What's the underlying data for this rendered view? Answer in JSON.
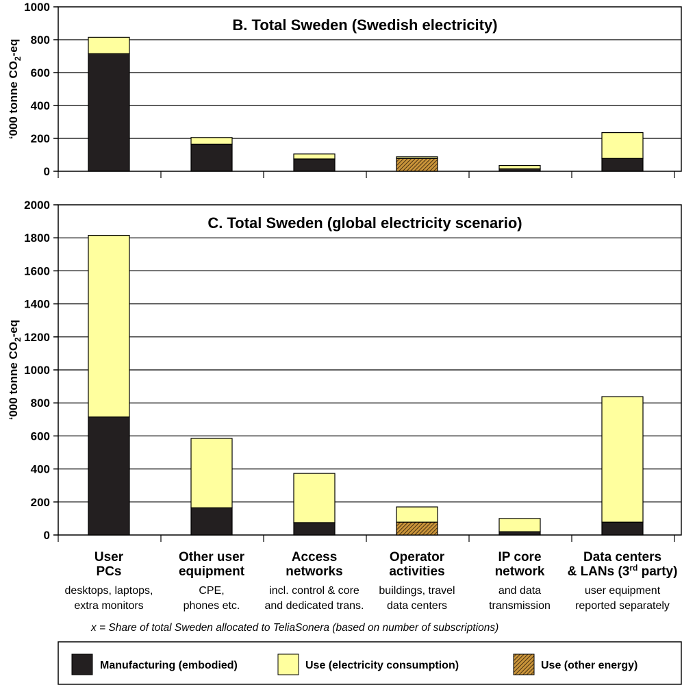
{
  "colors": {
    "manufacturing": "#231f20",
    "use_electricity": "#ffff9e",
    "use_other_fill": "#c9943a",
    "use_other_hatch": "#4a3212",
    "grid": "#000000"
  },
  "categories": [
    {
      "label1": "User",
      "label2": "PCs",
      "sub1": "desktops, laptops,",
      "sub2": "extra monitors"
    },
    {
      "label1": "Other user",
      "label2": "equipment",
      "sub1": "CPE,",
      "sub2": "phones etc."
    },
    {
      "label1": "Access",
      "label2": "networks",
      "sub1": "incl. control & core",
      "sub2": "and dedicated trans."
    },
    {
      "label1": "Operator",
      "label2": "activities",
      "sub1": "buildings, travel",
      "sub2": "data centers"
    },
    {
      "label1": "IP core",
      "label2": "network",
      "sub1": "and data",
      "sub2": "transmission"
    },
    {
      "label1": "Data centers",
      "label2": "& LANs (3",
      "label2_sup": "rd",
      "label2_tail": " party)",
      "sub1": "user equipment",
      "sub2": "reported separately"
    }
  ],
  "footnote": "x = Share of total Sweden allocated to TeliaSonera (based on number of subscriptions)",
  "legend": [
    {
      "key": "manufacturing",
      "label": "Manufacturing (embodied)"
    },
    {
      "key": "use_electricity",
      "label": "Use (electricity consumption)"
    },
    {
      "key": "use_other",
      "label": "Use (other energy)"
    }
  ],
  "chart_data": [
    {
      "type": "bar",
      "stacked": true,
      "title": "B. Total Sweden (Swedish electricity)",
      "ylabel": "‘000 tonne CO",
      "ylabel_sub": "2",
      "ylabel_tail": "-eq",
      "ylim": [
        0,
        1000
      ],
      "yticks": [
        0,
        200,
        400,
        600,
        800,
        1000
      ],
      "grid": true,
      "series": [
        {
          "key": "manufacturing",
          "name": "Manufacturing (embodied)",
          "values": [
            715,
            165,
            75,
            0,
            15,
            78
          ]
        },
        {
          "key": "use_other",
          "name": "Use (other energy)",
          "values": [
            0,
            0,
            0,
            78,
            0,
            0
          ]
        },
        {
          "key": "use_electricity",
          "name": "Use (electricity consumption)",
          "values": [
            100,
            40,
            30,
            10,
            20,
            157
          ]
        }
      ]
    },
    {
      "type": "bar",
      "stacked": true,
      "title": "C. Total Sweden (global electricity scenario)",
      "ylabel": "‘000 tonne CO",
      "ylabel_sub": "2",
      "ylabel_tail": "-eq",
      "ylim": [
        0,
        2000
      ],
      "yticks": [
        0,
        200,
        400,
        600,
        800,
        1000,
        1200,
        1400,
        1600,
        1800,
        2000
      ],
      "grid": true,
      "series": [
        {
          "key": "manufacturing",
          "name": "Manufacturing (embodied)",
          "values": [
            715,
            165,
            75,
            0,
            20,
            78
          ]
        },
        {
          "key": "use_other",
          "name": "Use (other energy)",
          "values": [
            0,
            0,
            0,
            78,
            0,
            0
          ]
        },
        {
          "key": "use_electricity",
          "name": "Use (electricity consumption)",
          "values": [
            1100,
            420,
            298,
            92,
            80,
            760
          ]
        }
      ]
    }
  ]
}
